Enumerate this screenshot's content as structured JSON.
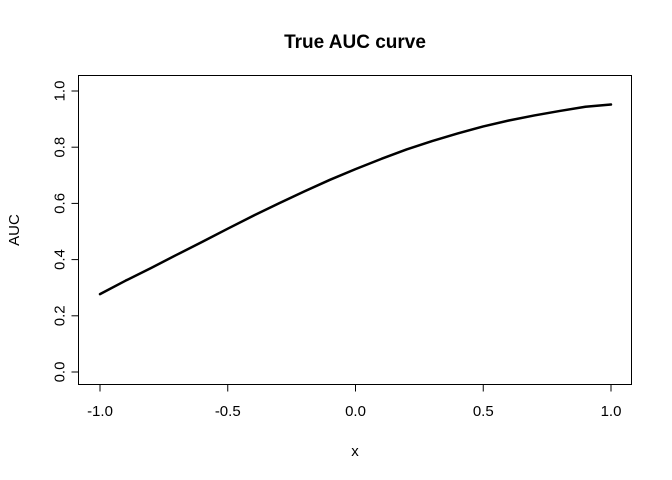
{
  "chart_data": {
    "type": "line",
    "title": "True AUC curve",
    "xlabel": "x",
    "ylabel": "AUC",
    "xlim": [
      -1.0,
      1.0
    ],
    "ylim": [
      0.0,
      1.0
    ],
    "xticks": [
      "-1.0",
      "-0.5",
      "0.0",
      "0.5",
      "1.0"
    ],
    "yticks": [
      "0.0",
      "0.2",
      "0.4",
      "0.6",
      "0.8",
      "1.0"
    ],
    "grid": false,
    "series": [
      {
        "color": "#000000",
        "x": [
          -1.0,
          -0.9,
          -0.8,
          -0.7,
          -0.6,
          -0.5,
          -0.4,
          -0.3,
          -0.2,
          -0.1,
          0.0,
          0.1,
          0.2,
          0.3,
          0.4,
          0.5,
          0.6,
          0.7,
          0.8,
          0.9,
          1.0
        ],
        "y": [
          0.277,
          0.325,
          0.37,
          0.417,
          0.463,
          0.51,
          0.556,
          0.6,
          0.643,
          0.684,
          0.722,
          0.758,
          0.792,
          0.822,
          0.849,
          0.874,
          0.895,
          0.913,
          0.929,
          0.944,
          0.952
        ]
      }
    ]
  }
}
